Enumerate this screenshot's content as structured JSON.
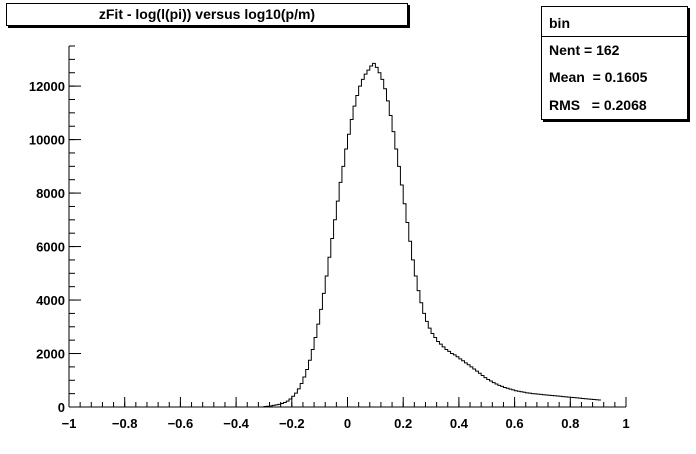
{
  "title": "zFit - log(l(pi)) versus log10(p/m)",
  "stats": {
    "name": "bin",
    "entries": "Nent = 162",
    "mean": "Mean  = 0.1605",
    "rms": "RMS   = 0.2068"
  },
  "chart_data": {
    "type": "bar",
    "histogram": true,
    "title": "zFit - log(l(pi)) versus log10(p/m)",
    "xlabel": "",
    "ylabel": "",
    "xlim": [
      -1,
      1
    ],
    "ylim": [
      0,
      13500
    ],
    "bin_start": -0.3,
    "bin_width": 0.01,
    "values": [
      20,
      30,
      40,
      60,
      80,
      100,
      130,
      170,
      220,
      300,
      400,
      520,
      680,
      880,
      1120,
      1400,
      1750,
      2150,
      2600,
      3100,
      3650,
      4250,
      4900,
      5600,
      6300,
      7000,
      7700,
      8400,
      9000,
      9650,
      10200,
      10750,
      11250,
      11650,
      12000,
      12250,
      12450,
      12600,
      12750,
      12850,
      12700,
      12500,
      12250,
      11900,
      11450,
      10900,
      10300,
      9650,
      9000,
      8300,
      7600,
      6900,
      6200,
      5500,
      4900,
      4350,
      3900,
      3500,
      3200,
      2950,
      2750,
      2600,
      2450,
      2350,
      2250,
      2150,
      2080,
      2000,
      1950,
      1880,
      1800,
      1730,
      1650,
      1580,
      1500,
      1420,
      1340,
      1260,
      1180,
      1100,
      1030,
      970,
      910,
      860,
      810,
      770,
      730,
      700,
      670,
      640,
      610,
      590,
      570,
      550,
      530,
      520,
      500,
      490,
      480,
      470,
      460,
      450,
      440,
      430,
      420,
      410,
      400,
      390,
      380,
      370,
      360,
      350,
      340,
      330,
      320,
      310,
      300,
      290,
      280,
      270,
      260
    ],
    "xticks": [
      -1,
      -0.8,
      -0.6,
      -0.4,
      -0.2,
      0,
      0.2,
      0.4,
      0.6,
      0.8,
      1
    ],
    "xtick_labels": [
      "−1",
      "−0.8",
      "−0.6",
      "−0.4",
      "−0.2",
      "0",
      "0.2",
      "0.4",
      "0.6",
      "0.8",
      "1"
    ],
    "yticks": [
      0,
      2000,
      4000,
      6000,
      8000,
      10000,
      12000
    ],
    "ytick_labels": [
      "0",
      "2000",
      "4000",
      "6000",
      "8000",
      "10000",
      "12000"
    ],
    "grid": false,
    "legend": "top-right"
  }
}
